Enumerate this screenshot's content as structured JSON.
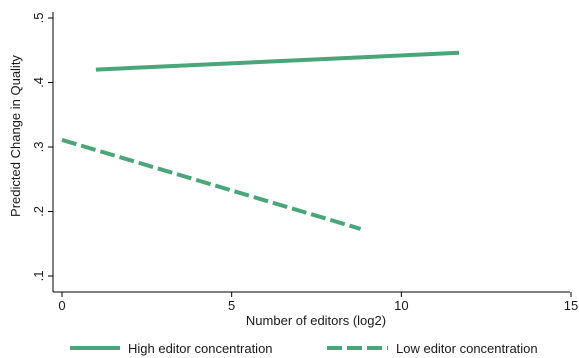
{
  "chart_data": {
    "type": "line",
    "xlabel": "Number of editors (log2)",
    "ylabel": "Predicted Change in Quality",
    "xlim": [
      0,
      15
    ],
    "ylim": [
      0.1,
      0.5
    ],
    "x_ticks": [
      0,
      5,
      10,
      15
    ],
    "x_tick_labels": [
      "0",
      "5",
      "10",
      "15"
    ],
    "y_ticks": [
      0.1,
      0.2,
      0.3,
      0.4,
      0.5
    ],
    "y_tick_labels": [
      ".1",
      ".2",
      ".3",
      ".4",
      ".5"
    ],
    "grid": false,
    "legend_position": "bottom",
    "series": [
      {
        "name": "High editor concentration",
        "style": "solid",
        "color": "#4aa67a",
        "x": [
          1,
          11.7
        ],
        "y": [
          0.42,
          0.446
        ]
      },
      {
        "name": "Low editor concentration",
        "style": "dashed",
        "color": "#4aa67a",
        "x": [
          0,
          8.8
        ],
        "y": [
          0.311,
          0.173
        ]
      }
    ]
  }
}
